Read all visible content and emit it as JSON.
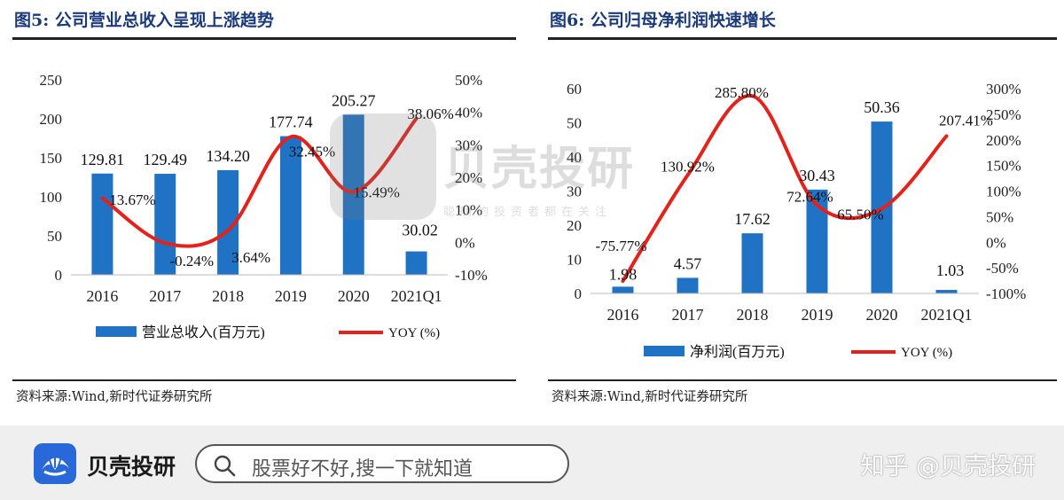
{
  "left": {
    "title": "图5:  公司营业总收入呈现上涨趋势",
    "source": "资料来源:Wind,新时代证券研究所",
    "chart_data": {
      "type": "bar",
      "title": "图5:  公司营业总收入呈现上涨趋势",
      "categories": [
        "2016",
        "2017",
        "2018",
        "2019",
        "2020",
        "2021Q1"
      ],
      "series": [
        {
          "name": "营业总收入(百万元)",
          "type": "bar",
          "axis": "left",
          "values": [
            129.81,
            129.49,
            134.2,
            177.74,
            205.27,
            30.02
          ],
          "labels": [
            "129.81",
            "129.49",
            "134.20",
            "177.74",
            "205.27",
            "30.02"
          ],
          "color": "#1f72c4"
        },
        {
          "name": "YOY (%)",
          "type": "line",
          "axis": "right",
          "values": [
            13.67,
            -0.24,
            3.64,
            32.45,
            15.49,
            38.06
          ],
          "labels": [
            "13.67%",
            "-0.24%",
            "3.64%",
            "32.45%",
            "15.49%",
            "38.06%"
          ],
          "color": "#e3221c"
        }
      ],
      "y_left": {
        "min": 0,
        "max": 250,
        "ticks": [
          "0",
          "50",
          "100",
          "150",
          "200",
          "250"
        ]
      },
      "y_right": {
        "min": -10,
        "max": 50,
        "ticks": [
          "-10%",
          "0%",
          "10%",
          "20%",
          "30%",
          "40%",
          "50%"
        ]
      },
      "legend": [
        "营业总收入(百万元)",
        "YOY (%)"
      ]
    }
  },
  "right": {
    "title": "图6:  公司归母净利润快速增长",
    "source": "资料来源:Wind,新时代证券研究所",
    "chart_data": {
      "type": "bar",
      "title": "图6:  公司归母净利润快速增长",
      "categories": [
        "2016",
        "2017",
        "2018",
        "2019",
        "2020",
        "2021Q1"
      ],
      "series": [
        {
          "name": "净利润(百万元)",
          "type": "bar",
          "axis": "left",
          "values": [
            1.98,
            4.57,
            17.62,
            30.43,
            50.36,
            1.03
          ],
          "labels": [
            "1.98",
            "4.57",
            "17.62",
            "30.43",
            "50.36",
            "1.03"
          ],
          "color": "#1f72c4"
        },
        {
          "name": "YOY (%)",
          "type": "line",
          "axis": "right",
          "values": [
            -75.77,
            130.92,
            285.8,
            72.64,
            65.5,
            207.41
          ],
          "labels": [
            "-75.77%",
            "130.92%",
            "285.80%",
            "72.64%",
            "65.50%",
            "207.41%"
          ],
          "color": "#e3221c"
        }
      ],
      "y_left": {
        "min": 0,
        "max": 60,
        "ticks": [
          "0",
          "10",
          "20",
          "30",
          "40",
          "50",
          "60"
        ]
      },
      "y_right": {
        "min": -100,
        "max": 300,
        "ticks": [
          "-100%",
          "-50%",
          "0%",
          "50%",
          "100%",
          "150%",
          "200%",
          "250%",
          "300%"
        ]
      },
      "legend": [
        "净利润(百万元)",
        "YOY (%)"
      ]
    }
  },
  "watermark": {
    "name": "贝壳投研",
    "sub": "聪明的投资者都在关注"
  },
  "footer": {
    "brand": "贝壳投研",
    "search_placeholder": "股票好不好,搜一下就知道",
    "handle": "知乎 @贝壳投研",
    "brand_color": "#2868d8"
  }
}
